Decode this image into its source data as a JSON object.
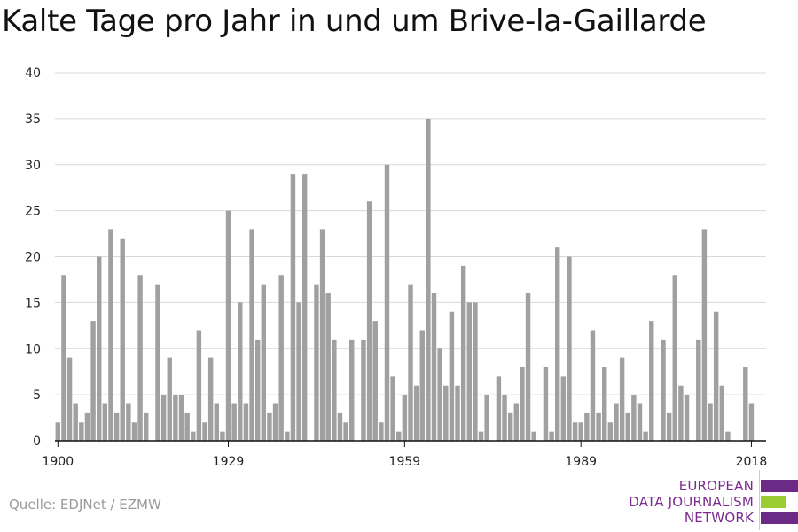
{
  "title": "Kalte Tage pro Jahr in und um Brive-la-Gaillarde",
  "source": "Quelle: EDJNet / EZMW",
  "logo": {
    "lines": [
      "EUROPEAN",
      "DATA JOURNALISM",
      "NETWORK"
    ],
    "text_color": "#7b2a8f",
    "bar_colors": [
      "#6b2a85",
      "#9acd32",
      "#6b2a85"
    ]
  },
  "colors": {
    "bar": "#a0a0a0",
    "grid": "#d9d9d9",
    "axis": "#111111"
  },
  "chart_data": {
    "type": "bar",
    "title": "Kalte Tage pro Jahr in und um Brive-la-Gaillarde",
    "xlabel": "",
    "ylabel": "",
    "x_range": [
      1900,
      2020
    ],
    "ylim": [
      0,
      40
    ],
    "yticks": [
      0,
      5,
      10,
      15,
      20,
      25,
      30,
      35,
      40
    ],
    "xticks": [
      1900,
      1929,
      1959,
      1989,
      2018
    ],
    "grid": true,
    "x": [
      1900,
      1901,
      1902,
      1903,
      1904,
      1905,
      1906,
      1907,
      1908,
      1909,
      1910,
      1911,
      1912,
      1913,
      1914,
      1915,
      1916,
      1917,
      1918,
      1919,
      1920,
      1921,
      1922,
      1923,
      1924,
      1925,
      1926,
      1927,
      1928,
      1929,
      1930,
      1931,
      1932,
      1933,
      1934,
      1935,
      1936,
      1937,
      1938,
      1939,
      1940,
      1941,
      1942,
      1943,
      1944,
      1945,
      1946,
      1947,
      1948,
      1949,
      1950,
      1951,
      1952,
      1953,
      1954,
      1955,
      1956,
      1957,
      1958,
      1959,
      1960,
      1961,
      1962,
      1963,
      1964,
      1965,
      1966,
      1967,
      1968,
      1969,
      1970,
      1971,
      1972,
      1973,
      1974,
      1975,
      1976,
      1977,
      1978,
      1979,
      1980,
      1981,
      1982,
      1983,
      1984,
      1985,
      1986,
      1987,
      1988,
      1989,
      1990,
      1991,
      1992,
      1993,
      1994,
      1995,
      1996,
      1997,
      1998,
      1999,
      2000,
      2001,
      2002,
      2003,
      2004,
      2005,
      2006,
      2007,
      2008,
      2009,
      2010,
      2011,
      2012,
      2013,
      2014,
      2015,
      2016,
      2017,
      2018,
      2019
    ],
    "values": [
      2,
      18,
      9,
      4,
      2,
      3,
      13,
      20,
      4,
      23,
      3,
      22,
      4,
      2,
      18,
      3,
      0,
      17,
      5,
      9,
      5,
      5,
      3,
      1,
      12,
      2,
      9,
      4,
      1,
      25,
      4,
      15,
      4,
      23,
      11,
      17,
      3,
      4,
      18,
      1,
      29,
      15,
      29,
      0,
      17,
      23,
      16,
      11,
      3,
      2,
      11,
      0,
      11,
      26,
      13,
      2,
      30,
      7,
      1,
      5,
      17,
      6,
      12,
      35,
      16,
      10,
      6,
      14,
      6,
      19,
      15,
      15,
      1,
      5,
      0,
      7,
      5,
      3,
      4,
      8,
      16,
      1,
      0,
      8,
      1,
      21,
      7,
      20,
      2,
      2,
      3,
      12,
      3,
      8,
      2,
      4,
      9,
      3,
      5,
      4,
      1,
      13,
      0,
      11,
      3,
      18,
      6,
      5,
      0,
      11,
      23,
      4,
      14,
      6,
      1,
      0,
      0,
      8,
      4,
      0
    ]
  }
}
